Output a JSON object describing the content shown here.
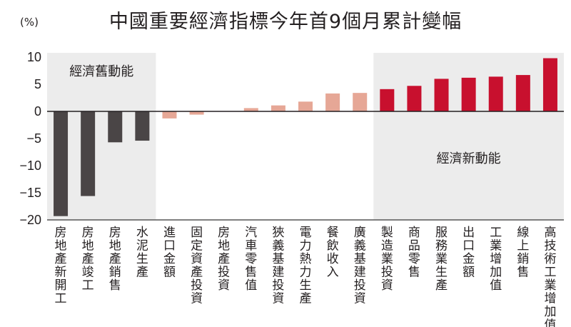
{
  "chart_data": {
    "type": "bar",
    "title": "中國重要經濟指標今年首9個月累計變幅",
    "ylabel": "(%)",
    "ylim": [
      -20,
      10
    ],
    "yticks": [
      10,
      5,
      0,
      -5,
      -10,
      -15,
      -20
    ],
    "grid": false,
    "categories": [
      "房地產新開工",
      "房地產竣工",
      "房地產銷售",
      "水泥生產",
      "進口金額",
      "固定資產投資",
      "房地產投資",
      "汽車零售值",
      "狹義基建投資",
      "電力熱力生產",
      "餐飲收入",
      "廣義基建投資",
      "製造業投資",
      "商品零售",
      "服務業生產",
      "出口金額",
      "工業增加值",
      "線上銷售",
      "高技術工業增加值"
    ],
    "values": [
      -19.3,
      -15.6,
      -5.7,
      -5.4,
      -1.3,
      -0.6,
      0.0,
      0.6,
      1.1,
      1.8,
      3.3,
      3.4,
      4.1,
      4.7,
      6.0,
      6.2,
      6.4,
      6.7,
      9.8
    ],
    "groups": [
      {
        "label": "經濟舊動能",
        "from": 0,
        "to": 3,
        "color": "#4a4546",
        "shaded": true
      },
      {
        "label": "",
        "from": 4,
        "to": 11,
        "color": "#e6a796",
        "shaded": false
      },
      {
        "label": "經濟新動能",
        "from": 12,
        "to": 18,
        "color": "#c8102e",
        "shaded": true
      }
    ],
    "shade_color": "#ececec"
  }
}
